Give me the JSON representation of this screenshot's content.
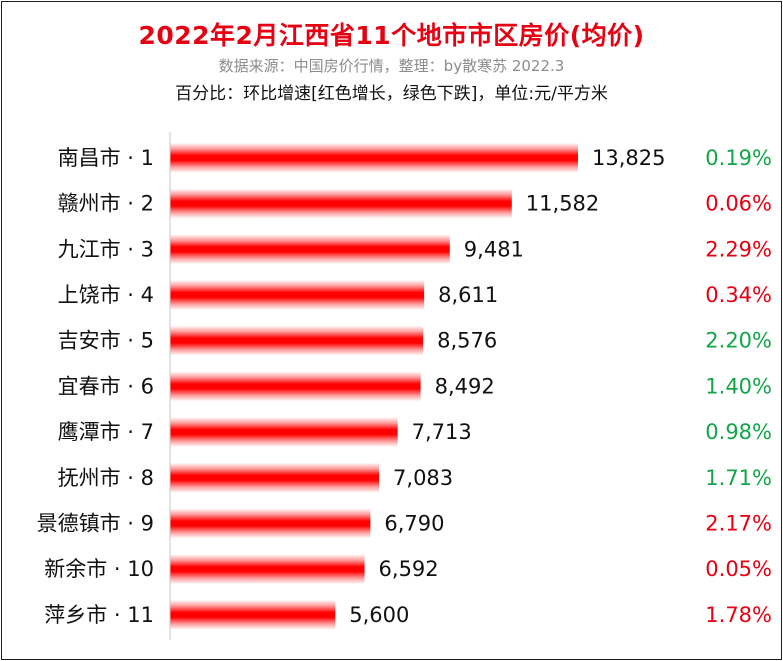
{
  "title": "2022年2月江西省11个地市市区房价(均价)",
  "subtitle": "数据来源：中国房价行情，整理：by散寒苏 2022.3",
  "note": "百分比：环比增速[红色增长，绿色下跌]，单位:元/平方米",
  "colors": {
    "title": "#e60012",
    "bar": "#ff0000",
    "increase": "#e60012",
    "decrease": "#13a549"
  },
  "chart_data": {
    "type": "bar",
    "orientation": "horizontal",
    "categories": [
      "南昌市 · 1",
      "赣州市 · 2",
      "九江市 · 3",
      "上饶市 · 4",
      "吉安市 · 5",
      "宜春市 · 6",
      "鹰潭市 · 7",
      "抚州市 · 8",
      "景德镇市 · 9",
      "新余市 · 10",
      "萍乡市 · 11"
    ],
    "values": [
      13825,
      11582,
      9481,
      8611,
      8576,
      8492,
      7713,
      7083,
      6790,
      6592,
      5600
    ],
    "value_labels": [
      "13,825",
      "11,582",
      "9,481",
      "8,611",
      "8,576",
      "8,492",
      "7,713",
      "7,083",
      "6,790",
      "6,592",
      "5,600"
    ],
    "mom_change_labels": [
      "0.19%",
      "0.06%",
      "2.29%",
      "0.34%",
      "2.20%",
      "1.40%",
      "0.98%",
      "1.71%",
      "2.17%",
      "0.05%",
      "1.78%"
    ],
    "mom_change_direction": [
      "down",
      "up",
      "up",
      "up",
      "down",
      "down",
      "down",
      "down",
      "up",
      "up",
      "up"
    ],
    "title": "2022年2月江西省11个地市市区房价(均价)",
    "xlabel": "",
    "ylabel": "",
    "xlim": [
      0,
      13825
    ],
    "grid": false,
    "legend": "none"
  }
}
